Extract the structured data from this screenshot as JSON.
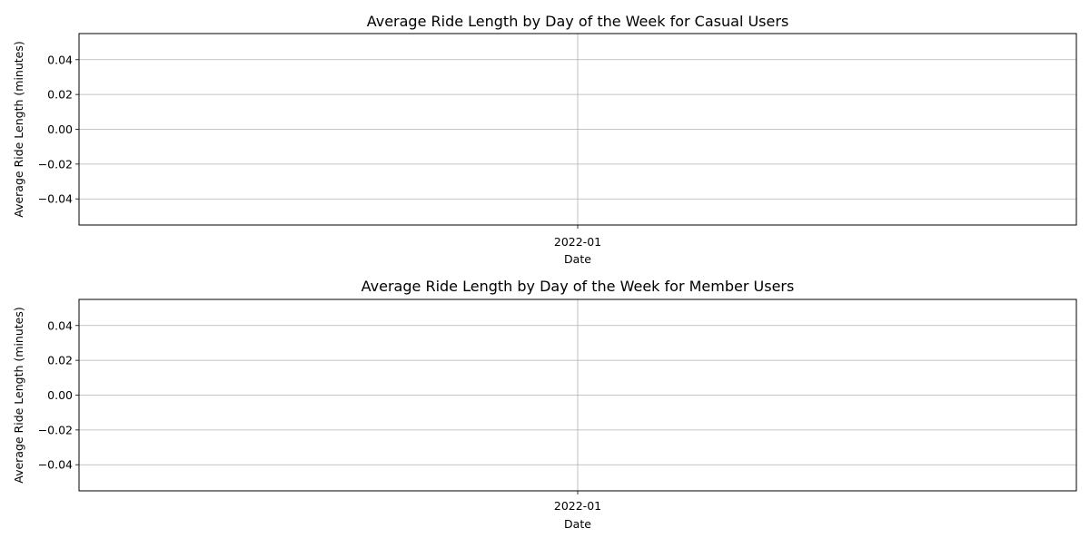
{
  "chart_data": [
    {
      "type": "line",
      "title": "Average Ride Length by Day of the Week for Casual Users",
      "xlabel": "Date",
      "ylabel": "Average Ride Length (minutes)",
      "x_ticks": [
        "2022-01"
      ],
      "y_ticks": [
        "0.04",
        "0.02",
        "0.00",
        "−0.02",
        "−0.04"
      ],
      "ylim": [
        -0.055,
        0.055
      ],
      "grid": true,
      "series": []
    },
    {
      "type": "line",
      "title": "Average Ride Length by Day of the Week for Member Users",
      "xlabel": "Date",
      "ylabel": "Average Ride Length (minutes)",
      "x_ticks": [
        "2022-01"
      ],
      "y_ticks": [
        "0.04",
        "0.02",
        "0.00",
        "−0.02",
        "−0.04"
      ],
      "ylim": [
        -0.055,
        0.055
      ],
      "grid": true,
      "series": []
    }
  ],
  "colors": {
    "grid": "#b0b0b0",
    "axes": "#000000",
    "background": "#ffffff"
  }
}
